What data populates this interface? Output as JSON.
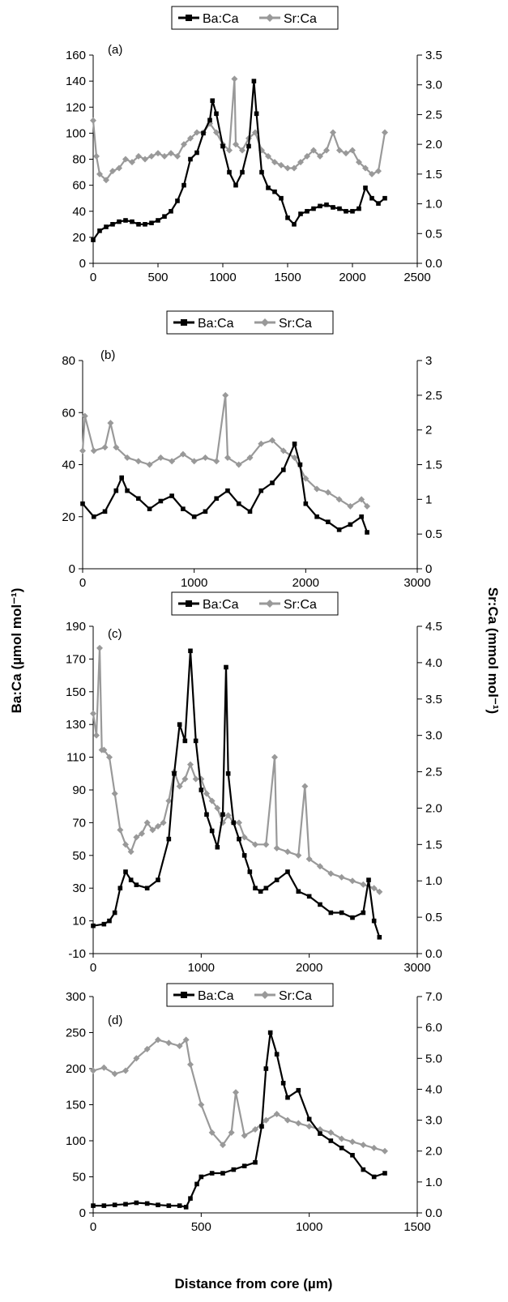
{
  "figure": {
    "ylabel_left": "Ba:Ca (µmol mol⁻¹)",
    "ylabel_right": "Sr:Ca (mmol mol⁻¹)",
    "xlabel": "Distance from core (µm)"
  },
  "chart_data": [
    {
      "type": "line",
      "panel_label": "(a)",
      "legend": [
        "Ba:Ca",
        "Sr:Ca"
      ],
      "xlim": [
        0,
        2500
      ],
      "x_ticks": [
        "0",
        "500",
        "1000",
        "1500",
        "2000",
        "2500"
      ],
      "ylim_left": [
        0,
        160
      ],
      "y_ticks_left": [
        "0",
        "20",
        "40",
        "60",
        "80",
        "100",
        "120",
        "140",
        "160"
      ],
      "ylim_right": [
        0,
        3.5
      ],
      "y_ticks_right": [
        "0.0",
        "0.5",
        "1.0",
        "1.5",
        "2.0",
        "2.5",
        "3.0",
        "3.5"
      ],
      "series": [
        {
          "name": "Ba:Ca",
          "axis": "left",
          "color": "#000000",
          "x": [
            0,
            50,
            100,
            150,
            200,
            250,
            300,
            350,
            400,
            450,
            500,
            550,
            600,
            650,
            700,
            750,
            800,
            850,
            900,
            920,
            950,
            1000,
            1050,
            1100,
            1150,
            1200,
            1240,
            1260,
            1300,
            1350,
            1400,
            1450,
            1500,
            1550,
            1600,
            1650,
            1700,
            1750,
            1800,
            1850,
            1900,
            1950,
            2000,
            2050,
            2100,
            2150,
            2200,
            2250
          ],
          "values": [
            18,
            25,
            28,
            30,
            32,
            33,
            32,
            30,
            30,
            31,
            33,
            36,
            40,
            48,
            60,
            80,
            85,
            100,
            110,
            125,
            115,
            90,
            70,
            60,
            70,
            90,
            140,
            115,
            70,
            58,
            55,
            50,
            35,
            30,
            38,
            40,
            42,
            44,
            45,
            43,
            42,
            40,
            40,
            42,
            58,
            50,
            46,
            50
          ]
        },
        {
          "name": "Sr:Ca",
          "axis": "right",
          "color": "#999999",
          "x": [
            0,
            25,
            50,
            100,
            150,
            200,
            250,
            300,
            350,
            400,
            450,
            500,
            550,
            600,
            650,
            700,
            750,
            800,
            850,
            900,
            950,
            1000,
            1050,
            1090,
            1100,
            1150,
            1200,
            1250,
            1300,
            1350,
            1400,
            1450,
            1500,
            1550,
            1600,
            1650,
            1700,
            1750,
            1800,
            1850,
            1900,
            1950,
            2000,
            2050,
            2100,
            2150,
            2200,
            2250
          ],
          "values": [
            2.4,
            1.8,
            1.5,
            1.4,
            1.55,
            1.6,
            1.75,
            1.7,
            1.8,
            1.75,
            1.8,
            1.85,
            1.8,
            1.85,
            1.8,
            2.0,
            2.1,
            2.2,
            2.2,
            2.35,
            2.2,
            2.0,
            1.9,
            3.1,
            2.0,
            1.9,
            2.1,
            2.2,
            1.9,
            1.8,
            1.7,
            1.65,
            1.6,
            1.6,
            1.7,
            1.8,
            1.9,
            1.8,
            1.9,
            2.2,
            1.9,
            1.85,
            1.9,
            1.7,
            1.6,
            1.5,
            1.55,
            2.2
          ]
        }
      ]
    },
    {
      "type": "line",
      "panel_label": "(b)",
      "legend": [
        "Ba:Ca",
        "Sr:Ca"
      ],
      "xlim": [
        0,
        3000
      ],
      "x_ticks": [
        "0",
        "1000",
        "2000",
        "3000"
      ],
      "ylim_left": [
        0,
        80
      ],
      "y_ticks_left": [
        "0",
        "20",
        "40",
        "60",
        "80"
      ],
      "ylim_right": [
        0,
        3
      ],
      "y_ticks_right": [
        "0",
        "0.5",
        "1",
        "1.5",
        "2",
        "2.5",
        "3"
      ],
      "series": [
        {
          "name": "Ba:Ca",
          "axis": "left",
          "color": "#000000",
          "x": [
            0,
            100,
            200,
            300,
            350,
            400,
            500,
            600,
            700,
            800,
            900,
            1000,
            1100,
            1200,
            1300,
            1400,
            1500,
            1600,
            1700,
            1800,
            1900,
            1950,
            2000,
            2100,
            2200,
            2300,
            2400,
            2500,
            2550
          ],
          "values": [
            25,
            20,
            22,
            30,
            35,
            30,
            27,
            23,
            26,
            28,
            23,
            20,
            22,
            27,
            30,
            25,
            22,
            30,
            33,
            38,
            48,
            40,
            25,
            20,
            18,
            15,
            17,
            20,
            14
          ]
        },
        {
          "name": "Sr:Ca",
          "axis": "right",
          "color": "#999999",
          "x": [
            0,
            20,
            100,
            200,
            250,
            300,
            400,
            500,
            600,
            700,
            800,
            900,
            1000,
            1100,
            1200,
            1280,
            1300,
            1400,
            1500,
            1600,
            1700,
            1800,
            1900,
            2000,
            2100,
            2200,
            2300,
            2400,
            2500,
            2550
          ],
          "values": [
            1.7,
            2.2,
            1.7,
            1.75,
            2.1,
            1.75,
            1.6,
            1.55,
            1.5,
            1.6,
            1.55,
            1.65,
            1.55,
            1.6,
            1.55,
            2.5,
            1.6,
            1.5,
            1.6,
            1.8,
            1.85,
            1.7,
            1.6,
            1.3,
            1.15,
            1.1,
            1.0,
            0.9,
            1.0,
            0.9
          ]
        }
      ]
    },
    {
      "type": "line",
      "panel_label": "(c)",
      "legend": [
        "Ba:Ca",
        "Sr:Ca"
      ],
      "xlim": [
        0,
        3000
      ],
      "x_ticks": [
        "0",
        "1000",
        "2000",
        "3000"
      ],
      "ylim_left": [
        -10,
        190
      ],
      "y_ticks_left": [
        "-10",
        "10",
        "30",
        "50",
        "70",
        "90",
        "110",
        "130",
        "150",
        "170",
        "190"
      ],
      "ylim_right": [
        0,
        4.5
      ],
      "y_ticks_right": [
        "0.0",
        "0.5",
        "1.0",
        "1.5",
        "2.0",
        "2.5",
        "3.0",
        "3.5",
        "4.0",
        "4.5"
      ],
      "series": [
        {
          "name": "Ba:Ca",
          "axis": "left",
          "color": "#000000",
          "x": [
            0,
            100,
            150,
            200,
            250,
            300,
            350,
            400,
            500,
            600,
            700,
            750,
            800,
            850,
            900,
            950,
            1000,
            1050,
            1100,
            1150,
            1200,
            1230,
            1250,
            1300,
            1350,
            1400,
            1450,
            1500,
            1550,
            1600,
            1700,
            1800,
            1900,
            2000,
            2100,
            2200,
            2300,
            2400,
            2500,
            2550,
            2600,
            2650
          ],
          "values": [
            7,
            8,
            10,
            15,
            30,
            40,
            35,
            32,
            30,
            35,
            60,
            100,
            130,
            120,
            175,
            120,
            90,
            75,
            65,
            55,
            75,
            165,
            100,
            70,
            60,
            50,
            40,
            30,
            28,
            30,
            35,
            40,
            28,
            25,
            20,
            15,
            15,
            12,
            15,
            35,
            10,
            0
          ]
        },
        {
          "name": "Sr:Ca",
          "axis": "right",
          "color": "#999999",
          "x": [
            0,
            30,
            60,
            80,
            100,
            150,
            200,
            250,
            300,
            350,
            400,
            450,
            500,
            550,
            600,
            650,
            700,
            750,
            800,
            850,
            900,
            950,
            1000,
            1050,
            1100,
            1150,
            1200,
            1250,
            1300,
            1350,
            1400,
            1500,
            1600,
            1680,
            1700,
            1800,
            1900,
            1960,
            2000,
            2100,
            2200,
            2300,
            2400,
            2500,
            2600,
            2650
          ],
          "values": [
            3.3,
            3.0,
            4.2,
            2.8,
            2.8,
            2.7,
            2.2,
            1.7,
            1.5,
            1.4,
            1.6,
            1.65,
            1.8,
            1.7,
            1.75,
            1.8,
            2.1,
            2.5,
            2.3,
            2.4,
            2.6,
            2.4,
            2.4,
            2.2,
            2.1,
            2.0,
            1.8,
            1.9,
            1.8,
            1.8,
            1.6,
            1.5,
            1.5,
            2.7,
            1.45,
            1.4,
            1.35,
            2.3,
            1.3,
            1.2,
            1.1,
            1.05,
            1.0,
            0.95,
            0.9,
            0.85
          ]
        }
      ]
    },
    {
      "type": "line",
      "panel_label": "(d)",
      "legend": [
        "Ba:Ca",
        "Sr:Ca"
      ],
      "xlim": [
        0,
        1500
      ],
      "x_ticks": [
        "0",
        "500",
        "1000",
        "1500"
      ],
      "ylim_left": [
        0,
        300
      ],
      "y_ticks_left": [
        "0",
        "50",
        "100",
        "150",
        "200",
        "250",
        "300"
      ],
      "ylim_right": [
        0,
        7.0
      ],
      "y_ticks_right": [
        "0.0",
        "1.0",
        "2.0",
        "3.0",
        "4.0",
        "5.0",
        "6.0",
        "7.0"
      ],
      "series": [
        {
          "name": "Ba:Ca",
          "axis": "left",
          "color": "#000000",
          "x": [
            0,
            50,
            100,
            150,
            200,
            250,
            300,
            350,
            400,
            430,
            450,
            480,
            500,
            550,
            600,
            650,
            700,
            750,
            780,
            800,
            820,
            850,
            880,
            900,
            950,
            1000,
            1050,
            1100,
            1150,
            1200,
            1250,
            1300,
            1350
          ],
          "values": [
            10,
            10,
            11,
            12,
            14,
            13,
            11,
            10,
            10,
            8,
            20,
            40,
            50,
            55,
            55,
            60,
            65,
            70,
            120,
            200,
            250,
            220,
            180,
            160,
            170,
            130,
            110,
            100,
            90,
            80,
            60,
            50,
            55
          ]
        },
        {
          "name": "Sr:Ca",
          "axis": "right",
          "color": "#999999",
          "x": [
            0,
            50,
            100,
            150,
            200,
            250,
            300,
            350,
            400,
            430,
            450,
            500,
            550,
            600,
            640,
            660,
            700,
            750,
            800,
            850,
            900,
            950,
            1000,
            1050,
            1100,
            1150,
            1200,
            1250,
            1300,
            1350
          ],
          "values": [
            4.6,
            4.7,
            4.5,
            4.6,
            5.0,
            5.3,
            5.6,
            5.5,
            5.4,
            5.6,
            4.8,
            3.5,
            2.6,
            2.2,
            2.6,
            3.9,
            2.5,
            2.7,
            3.0,
            3.2,
            3.0,
            2.9,
            2.8,
            2.7,
            2.6,
            2.4,
            2.3,
            2.2,
            2.1,
            2.0
          ]
        }
      ]
    }
  ]
}
